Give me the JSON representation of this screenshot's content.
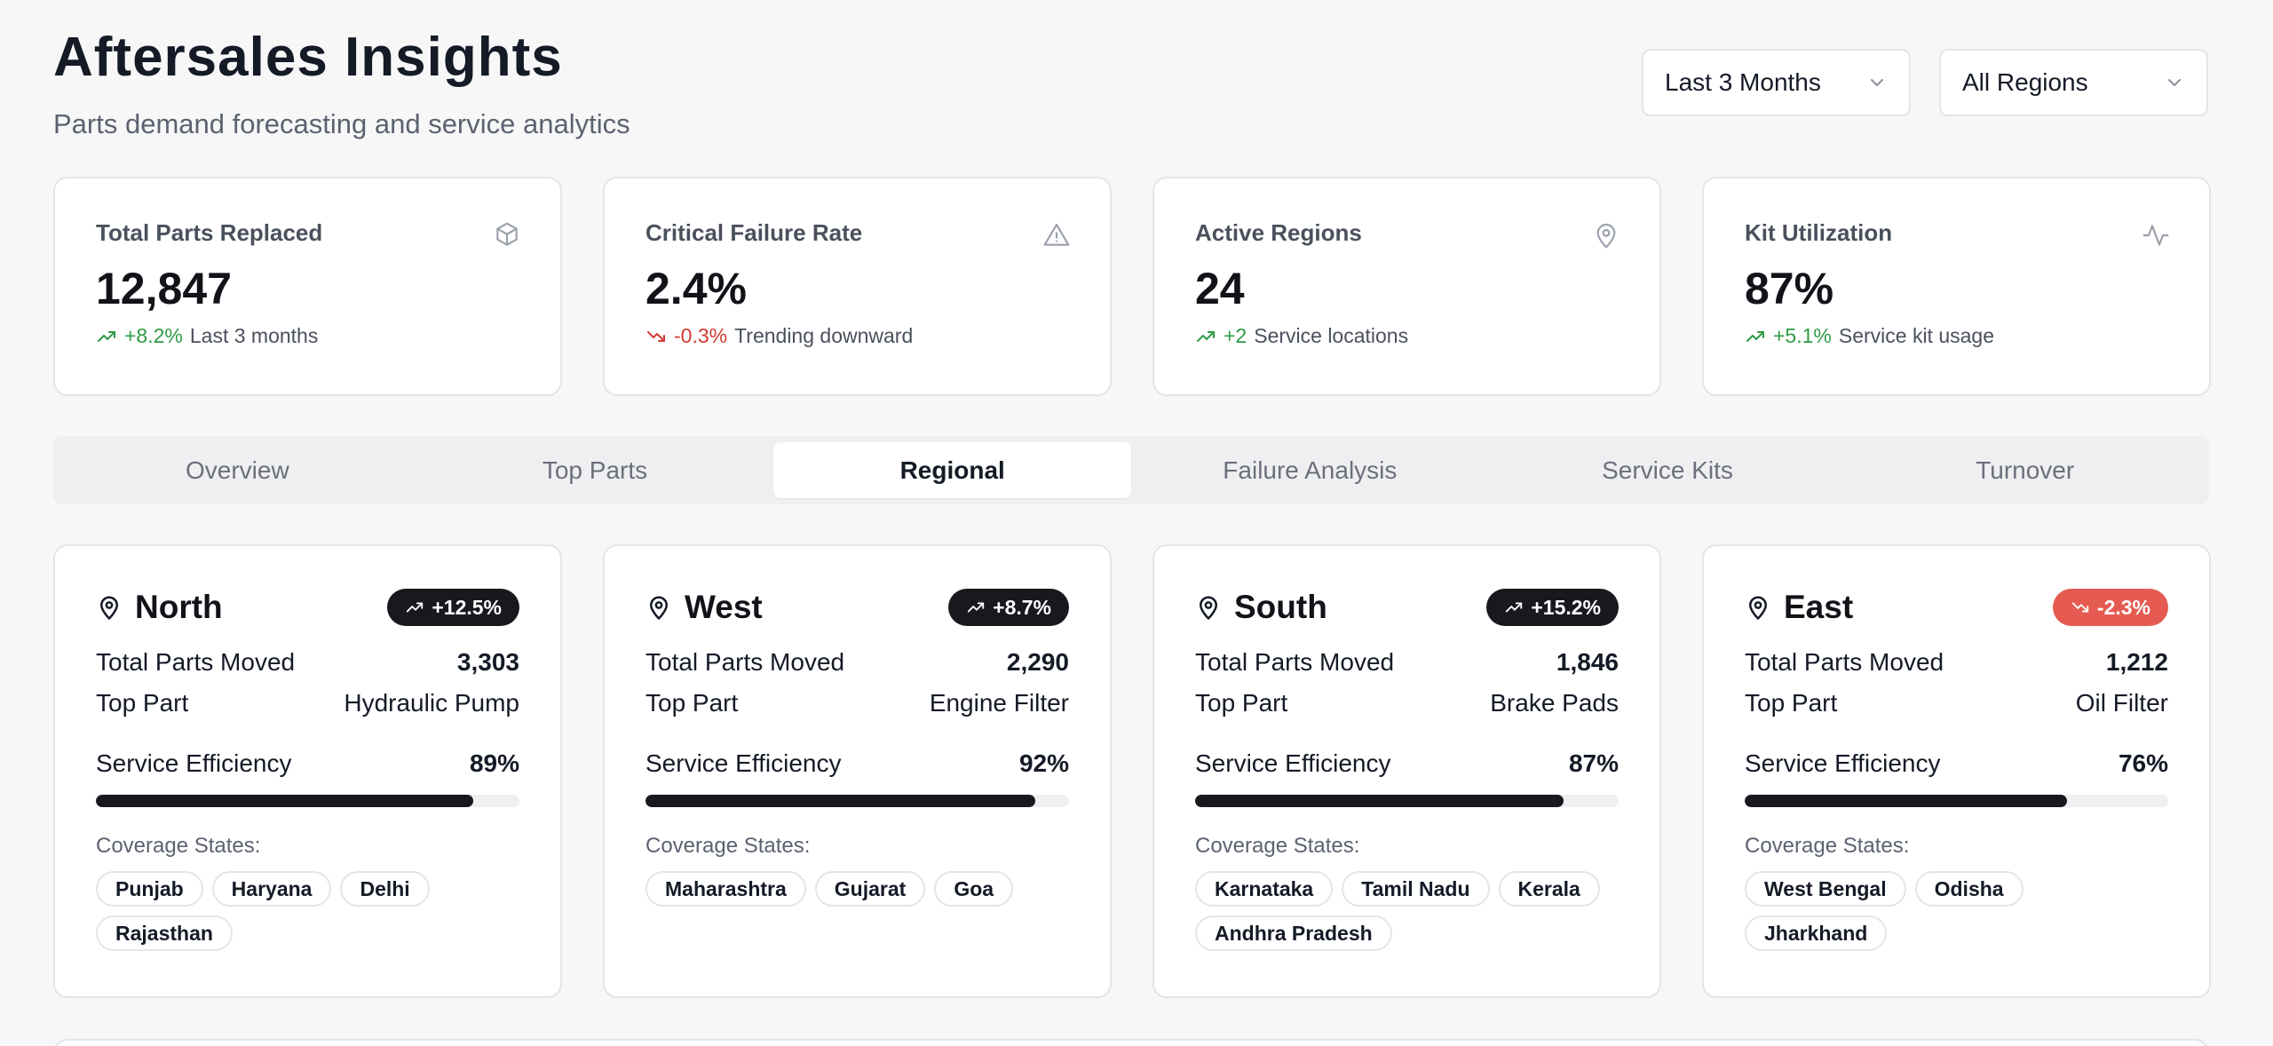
{
  "header": {
    "title": "Aftersales Insights",
    "subtitle": "Parts demand forecasting and service analytics"
  },
  "filters": {
    "period": "Last 3 Months",
    "region": "All Regions"
  },
  "kpis": [
    {
      "label": "Total Parts Replaced",
      "icon": "box-icon",
      "value": "12,847",
      "change": "+8.2%",
      "direction": "up",
      "note": "Last 3 months"
    },
    {
      "label": "Critical Failure Rate",
      "icon": "alert-triangle-icon",
      "value": "2.4%",
      "change": "-0.3%",
      "direction": "down",
      "note": "Trending downward"
    },
    {
      "label": "Active Regions",
      "icon": "map-pin-icon",
      "value": "24",
      "change": "+2",
      "direction": "up",
      "note": "Service locations"
    },
    {
      "label": "Kit Utilization",
      "icon": "activity-icon",
      "value": "87%",
      "change": "+5.1%",
      "direction": "up",
      "note": "Service kit usage"
    }
  ],
  "tabs": [
    {
      "label": "Overview"
    },
    {
      "label": "Top Parts"
    },
    {
      "label": "Regional",
      "active": true
    },
    {
      "label": "Failure Analysis"
    },
    {
      "label": "Service Kits"
    },
    {
      "label": "Turnover"
    }
  ],
  "region_labels": {
    "total_parts_moved": "Total Parts Moved",
    "top_part": "Top Part",
    "service_efficiency": "Service Efficiency",
    "coverage_states": "Coverage States:"
  },
  "regions": [
    {
      "name": "North",
      "trend": "+12.5%",
      "direction": "up",
      "parts_moved": "3,303",
      "top_part": "Hydraulic Pump",
      "efficiency": "89%",
      "efficiency_value": 89,
      "states": [
        "Punjab",
        "Haryana",
        "Delhi",
        "Rajasthan"
      ]
    },
    {
      "name": "West",
      "trend": "+8.7%",
      "direction": "up",
      "parts_moved": "2,290",
      "top_part": "Engine Filter",
      "efficiency": "92%",
      "efficiency_value": 92,
      "states": [
        "Maharashtra",
        "Gujarat",
        "Goa"
      ]
    },
    {
      "name": "South",
      "trend": "+15.2%",
      "direction": "up",
      "parts_moved": "1,846",
      "top_part": "Brake Pads",
      "efficiency": "87%",
      "efficiency_value": 87,
      "states": [
        "Karnataka",
        "Tamil Nadu",
        "Kerala",
        "Andhra Pradesh"
      ]
    },
    {
      "name": "East",
      "trend": "-2.3%",
      "direction": "down",
      "parts_moved": "1,212",
      "top_part": "Oil Filter",
      "efficiency": "76%",
      "efficiency_value": 76,
      "states": [
        "West Bengal",
        "Odisha",
        "Jharkhand"
      ]
    }
  ],
  "colors": {
    "positive": "#2e9b45",
    "negative": "#d23a2f",
    "badge_dark": "#17191f",
    "badge_negative": "#e55b52"
  }
}
